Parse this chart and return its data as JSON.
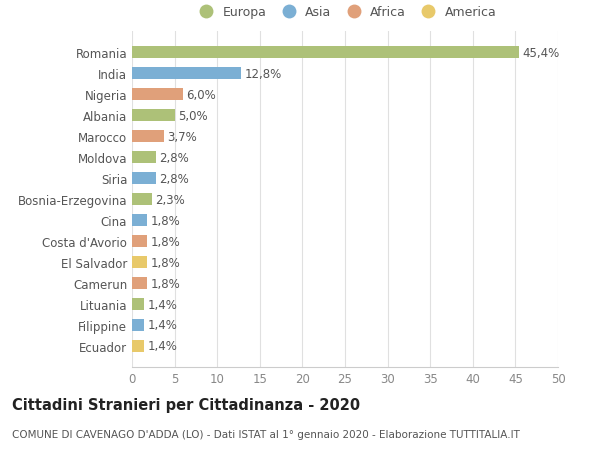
{
  "countries": [
    "Romania",
    "India",
    "Nigeria",
    "Albania",
    "Marocco",
    "Moldova",
    "Siria",
    "Bosnia-Erzegovina",
    "Cina",
    "Costa d'Avorio",
    "El Salvador",
    "Camerun",
    "Lituania",
    "Filippine",
    "Ecuador"
  ],
  "values": [
    45.4,
    12.8,
    6.0,
    5.0,
    3.7,
    2.8,
    2.8,
    2.3,
    1.8,
    1.8,
    1.8,
    1.8,
    1.4,
    1.4,
    1.4
  ],
  "labels": [
    "45,4%",
    "12,8%",
    "6,0%",
    "5,0%",
    "3,7%",
    "2,8%",
    "2,8%",
    "2,3%",
    "1,8%",
    "1,8%",
    "1,8%",
    "1,8%",
    "1,4%",
    "1,4%",
    "1,4%"
  ],
  "continents": [
    "Europa",
    "Asia",
    "Africa",
    "Europa",
    "Africa",
    "Europa",
    "Asia",
    "Europa",
    "Asia",
    "Africa",
    "America",
    "Africa",
    "Europa",
    "Asia",
    "America"
  ],
  "colors": {
    "Europa": "#adc178",
    "Asia": "#7bafd4",
    "Africa": "#e0a07a",
    "America": "#e8c96a"
  },
  "title": "Cittadini Stranieri per Cittadinanza - 2020",
  "subtitle": "COMUNE DI CAVENAGO D'ADDA (LO) - Dati ISTAT al 1° gennaio 2020 - Elaborazione TUTTITALIA.IT",
  "xlim": [
    0,
    50
  ],
  "xticks": [
    0,
    5,
    10,
    15,
    20,
    25,
    30,
    35,
    40,
    45,
    50
  ],
  "background_color": "#ffffff",
  "grid_color": "#e0e0e0",
  "bar_height": 0.55,
  "label_fontsize": 8.5,
  "title_fontsize": 10.5,
  "subtitle_fontsize": 7.5,
  "ytick_fontsize": 8.5,
  "xtick_fontsize": 8.5,
  "legend_order": [
    "Europa",
    "Asia",
    "Africa",
    "America"
  ]
}
